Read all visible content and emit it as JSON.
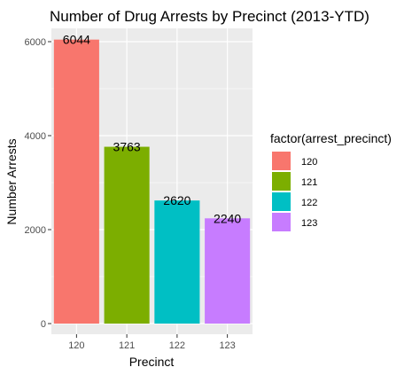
{
  "chart_data": {
    "type": "bar",
    "title": "Number of Drug Arrests by Precinct (2013-YTD)",
    "xlabel": "Precinct",
    "ylabel": "Number Arrests",
    "categories": [
      "120",
      "121",
      "122",
      "123"
    ],
    "values": [
      6044,
      3763,
      2620,
      2240
    ],
    "data_labels": [
      "6044",
      "3763",
      "2620",
      "2240"
    ],
    "colors": [
      "#F8766D",
      "#7CAE00",
      "#00BFC4",
      "#C77CFF"
    ],
    "ylim": [
      0,
      6300
    ],
    "yticks": [
      0,
      2000,
      4000,
      6000
    ],
    "ytick_labels": [
      "0",
      "2000",
      "4000",
      "6000"
    ],
    "grid": true,
    "legend": {
      "title": "factor(arrest_precinct)",
      "position": "right",
      "entries": [
        "120",
        "121",
        "122",
        "123"
      ]
    }
  }
}
